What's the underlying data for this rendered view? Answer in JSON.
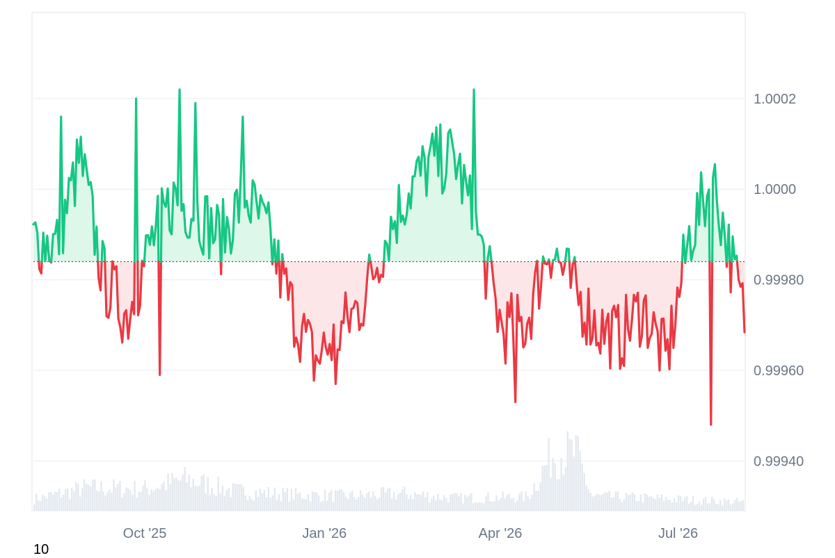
{
  "chart_data": {
    "type": "area",
    "baseline": 0.99984,
    "ylim": [
      0.99929,
      1.00039
    ],
    "y_ticks": [
      {
        "value": 1.0002,
        "label": "1.0002"
      },
      {
        "value": 1.0,
        "label": "1.0000"
      },
      {
        "value": 0.9998,
        "label": "0.99980"
      },
      {
        "value": 0.9996,
        "label": "0.99960"
      },
      {
        "value": 0.9994,
        "label": "0.99940"
      }
    ],
    "x_range": [
      "2025-08-05",
      "2026-08-04"
    ],
    "x_ticks": [
      {
        "date": "2025-10-01",
        "label": "Oct '25"
      },
      {
        "date": "2026-01-01",
        "label": "Jan '26"
      },
      {
        "date": "2026-04-01",
        "label": "Apr '26"
      },
      {
        "date": "2026-07-01",
        "label": "Jul '26"
      }
    ],
    "colors": {
      "above": "#16c784",
      "below": "#ea3943",
      "above_fill": "#d7f6e8",
      "below_fill": "#fde2e3",
      "grid": "#ececec",
      "volume": "#e4e9ef",
      "baseline": "#555555"
    },
    "series": [
      {
        "x": [
          "2025-08-05",
          "2025-08-17",
          "2025-08-29",
          "2025-09-10",
          "2025-09-22",
          "2025-10-04",
          "2025-10-16",
          "2025-10-28",
          "2025-11-09",
          "2025-11-21",
          "2025-12-03",
          "2025-12-15",
          "2025-12-27",
          "2026-01-08",
          "2026-01-20",
          "2026-02-01",
          "2026-02-13",
          "2026-02-25",
          "2026-03-09",
          "2026-03-21",
          "2026-04-02",
          "2026-04-14",
          "2026-04-26",
          "2026-05-08",
          "2026-05-20",
          "2026-06-01",
          "2026-06-13",
          "2026-06-25",
          "2026-07-07",
          "2026-07-19",
          "2026-07-31",
          "2026-08-04"
        ],
        "values": [
          0.99989,
          0.99988,
          1.00007,
          0.9998,
          0.99972,
          0.99988,
          0.99998,
          0.99995,
          0.99989,
          0.99999,
          0.9999,
          0.99974,
          0.99962,
          0.99968,
          0.99975,
          0.99989,
          1.0,
          1.00006,
          1.00007,
          0.99989,
          0.99969,
          0.9997,
          0.99988,
          0.99978,
          0.9997,
          0.99967,
          0.99974,
          0.99962,
          0.9999,
          1.00002,
          0.99979,
          0.99972
        ],
        "peaks": [
          {
            "x": "2025-08-19",
            "value": 1.00016
          },
          {
            "x": "2025-09-27",
            "value": 1.0002
          },
          {
            "x": "2025-10-09",
            "value": 0.99959
          },
          {
            "x": "2025-10-19",
            "value": 1.00022
          },
          {
            "x": "2025-10-27",
            "value": 1.00019
          },
          {
            "x": "2025-11-20",
            "value": 1.00016
          },
          {
            "x": "2026-01-07",
            "value": 0.99957
          },
          {
            "x": "2026-03-18",
            "value": 1.00022
          },
          {
            "x": "2026-04-09",
            "value": 0.99953
          },
          {
            "x": "2026-07-18",
            "value": 0.99948
          }
        ]
      }
    ],
    "volume": {
      "x": [
        "2025-08-05",
        "2025-09-01",
        "2025-10-01",
        "2025-10-22",
        "2025-11-15",
        "2025-12-15",
        "2026-01-15",
        "2026-02-10",
        "2026-03-10",
        "2026-04-15",
        "2026-04-28",
        "2026-05-10",
        "2026-05-18",
        "2026-06-15",
        "2026-07-15",
        "2026-08-04"
      ],
      "values": [
        20,
        40,
        38,
        55,
        35,
        28,
        26,
        30,
        22,
        24,
        100,
        100,
        25,
        22,
        18,
        15
      ]
    }
  },
  "watermark": "10"
}
